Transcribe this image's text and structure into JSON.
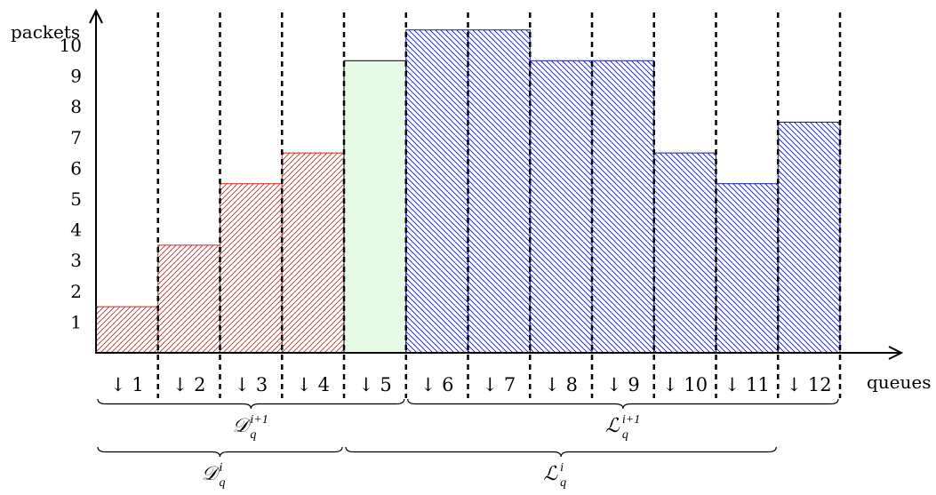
{
  "chart_data": {
    "type": "bar",
    "ylabel": "packets",
    "xlabel": "queues",
    "ylim": [
      0,
      11
    ],
    "yticks": [
      "1",
      "2",
      "3",
      "4",
      "5",
      "6",
      "7",
      "8",
      "9",
      "10"
    ],
    "categories": [
      "↓ 1",
      "↓ 2",
      "↓ 3",
      "↓ 4",
      "↓ 5",
      "↓ 6",
      "↓ 7",
      "↓ 8",
      "↓ 9",
      "↓ 10",
      "↓ 11",
      "↓ 12"
    ],
    "values": [
      1.5,
      3.5,
      5.5,
      6.5,
      9.5,
      10.5,
      10.5,
      9.5,
      9.5,
      6.5,
      5.5,
      7.5
    ],
    "groups": [
      "red",
      "red",
      "red",
      "red",
      "green",
      "blue",
      "blue",
      "blue",
      "blue",
      "blue",
      "blue",
      "blue"
    ],
    "colors": {
      "red": "#dd2222",
      "green_fill": "#e6fbe6",
      "blue": "#1a1aa8",
      "axis": "#000000"
    },
    "braces": [
      {
        "base": "D",
        "script": "𝒟",
        "sub": "q",
        "sup": "i+1",
        "from_queue": 1,
        "to_queue": 5,
        "row": 1
      },
      {
        "base": "L",
        "script": "ℒ",
        "sub": "q",
        "sup": "i+1",
        "from_queue": 6,
        "to_queue": 12,
        "row": 1
      },
      {
        "base": "D",
        "script": "𝒟",
        "sub": "q",
        "sup": "i",
        "from_queue": 1,
        "to_queue": 4,
        "row": 2
      },
      {
        "base": "L",
        "script": "ℒ",
        "sub": "q",
        "sup": "i",
        "from_queue": 5,
        "to_queue": 11,
        "row": 2
      }
    ]
  }
}
